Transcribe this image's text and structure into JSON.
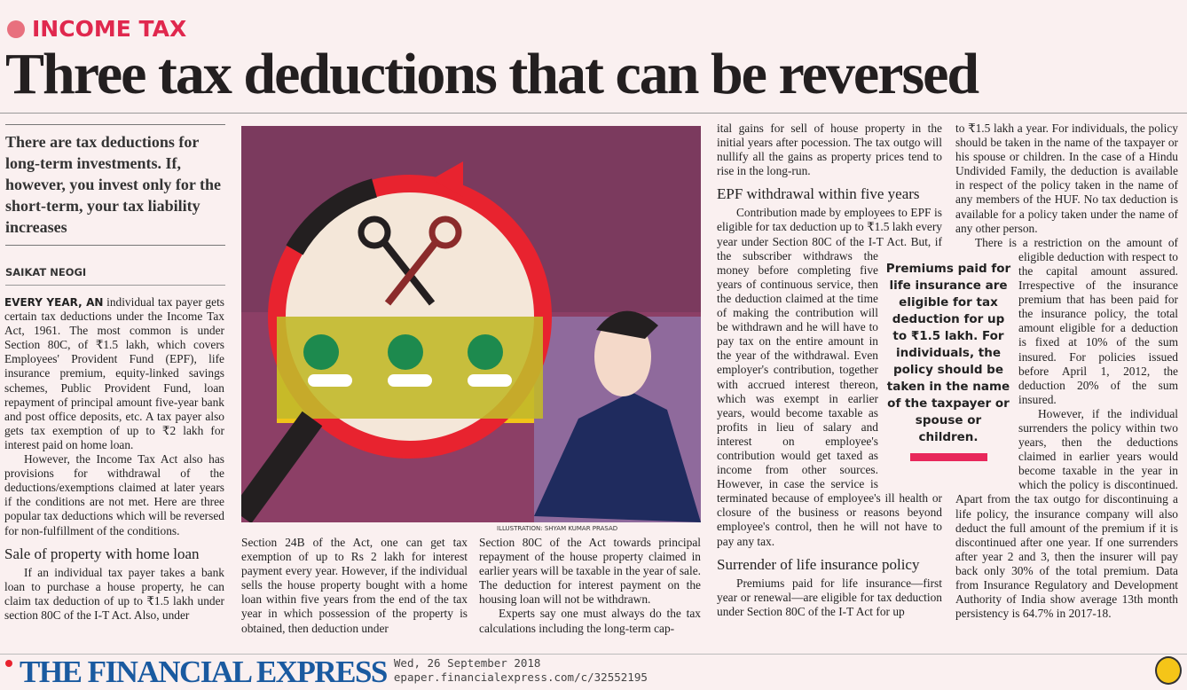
{
  "kicker": "INCOME TAX",
  "headline": "Three tax deductions that can be reversed",
  "standfirst": "There are tax deductions for long-term investments. If, however, you invest only for the short-term, your tax liability increases",
  "byline": "SAIKAT NEOGI",
  "illustration_credit": "ILLUSTRATION: SHYAM KUMAR PRASAD",
  "callout": "Premiums paid for life insurance are eligible for tax deduction for up to ₹1.5 lakh. For individuals, the policy should be taken in the name of the taxpayer or spouse or children.",
  "colors": {
    "accent": "#e0284e",
    "logo": "#1a5aa0",
    "background": "#faf0f0"
  },
  "body": {
    "lead": "EVERY YEAR, AN",
    "p1": "individual tax payer gets certain tax deductions under the Income Tax Act, 1961. The most common is under Section 80C, of ₹1.5 lakh, which covers Employees' Provident Fund (EPF), life insurance premium, equity-linked savings schemes, Public Provident Fund, loan repayment of principal amount five-year bank and post office deposits, etc. A tax payer also gets tax exemption of up to ₹2 lakh for interest paid on home loan.",
    "p2": "However, the Income Tax Act also has provisions for withdrawal of the deductions/exemptions claimed at later years if the conditions are not met. Here are three popular tax deductions which will be reversed for non-fulfillment of the conditions.",
    "h1": "Sale of property with home loan",
    "p3": "If an individual tax payer takes a bank loan to purchase a house property, he can claim tax deduction of up to ₹1.5 lakh under section 80C of the I-T Act. Also, under",
    "p3b": "Section 24B of the Act, one can get tax exemption of up to Rs 2 lakh for interest payment every year. However, if the individual sells the house property bought with a home loan within five years from the end of the tax year in which possession of the property is obtained, then deduction under",
    "p3c": "Section 80C of the Act towards principal repayment of the house property claimed in earlier years will be taxable in the year of sale. The deduction for interest payment on the housing loan will not be withdrawn.",
    "p4": "Experts say one must always do the tax calculations including the long-term cap-",
    "p4b": "ital gains for sell of house property in the initial years after pocession. The tax outgo will nullify all the gains as property prices tend to rise in the long-run.",
    "h2": "EPF withdrawal within five years",
    "p5": "Contribution made by employees to EPF is eligible for tax deduction up to ₹1.5 lakh every year under Section 80C of the I-T Act. But, if the subscriber withdraws the money before completing five years of continuous service, then the deduction claimed at the time of making the contribution will be withdrawn and he will have to pay tax on the entire amount in the year of the withdrawal. Even employer's contribution, together with accrued interest thereon, which was exempt in earlier years, would become taxable as profits in lieu of salary and interest on employee's contribution would get taxed as income from other sources. However, in case the service is terminated because of employee's ill health or closure of the business or reasons beyond employee's control, then he will not have to pay any tax.",
    "h3": "Surrender of life insurance policy",
    "p6": "Premiums paid for life insurance—first year or renewal—are eligible for tax deduction under Section 80C of the I-T Act for up",
    "p6b": "to ₹1.5 lakh a year. For individuals, the policy should be taken in the name of the taxpayer or his spouse or children. In the case of a Hindu Undivided Family, the deduction is available in respect of the policy taken in the name of any members of the HUF. No tax deduction is available for a policy taken under the name of any other person.",
    "p7": "There is a restriction on the amount of eligible deduction with respect to the capital amount assured. Irrespective of the insurance premium that has been paid for the insurance policy, the total amount eligible for a deduction is fixed at 10% of the sum insured. For policies issued before April 1, 2012, the deduction 20% of the sum insured.",
    "p8": "However, if the individual surrenders the policy within two years, then the deductions claimed in earlier years would become taxable in the year in which the policy is discontinued. Apart from the tax outgo for discontinuing a life policy, the insurance company will also deduct the full amount of the premium if it is discontinued after one year. If one surrenders after year 2 and 3, then the insurer will pay back only 30% of the total premium. Data from Insurance Regulatory and Development Authority of India show average 13th month persistency is 64.7% in 2017-18."
  },
  "footer": {
    "logo": "THE FINANCIAL EXPRESS",
    "date": "Wed, 26 September 2018",
    "url": "epaper.financialexpress.com/c/32552195"
  }
}
